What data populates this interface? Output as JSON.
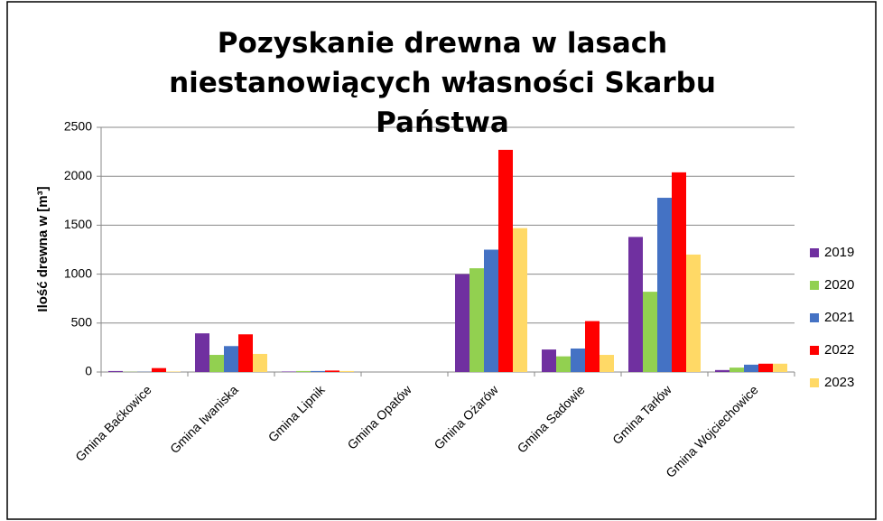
{
  "chart_data": {
    "type": "bar",
    "title": "Pozyskanie drewna w lasach niestanowiących własności Skarbu Państwa",
    "y_label": "Ilość drewna w [m³]",
    "categories": [
      "Gmina Baćkowice",
      "Gmina Iwaniska",
      "Gmina Lipnik",
      "Gmina Opatów",
      "Gmina Ożarów",
      "Gmina Sadowie",
      "Gmina Tarłów",
      "Gmina Wojciechowice"
    ],
    "series": [
      {
        "name": "2019",
        "color": "#7030a0",
        "values": [
          10,
          395,
          5,
          0,
          1000,
          230,
          1380,
          20
        ]
      },
      {
        "name": "2020",
        "color": "#92d050",
        "values": [
          2,
          175,
          10,
          0,
          1060,
          160,
          820,
          45
        ]
      },
      {
        "name": "2021",
        "color": "#4472c4",
        "values": [
          2,
          265,
          10,
          0,
          1250,
          240,
          1780,
          75
        ]
      },
      {
        "name": "2022",
        "color": "#ff0000",
        "values": [
          40,
          385,
          15,
          0,
          2270,
          520,
          2040,
          85
        ]
      },
      {
        "name": "2023",
        "color": "#ffd966",
        "values": [
          5,
          185,
          10,
          0,
          1470,
          175,
          1200,
          85
        ]
      }
    ],
    "ylim": [
      0,
      2500
    ],
    "yticks": [
      0,
      500,
      1000,
      1500,
      2000,
      2500
    ],
    "grid": true,
    "legend": "right"
  }
}
